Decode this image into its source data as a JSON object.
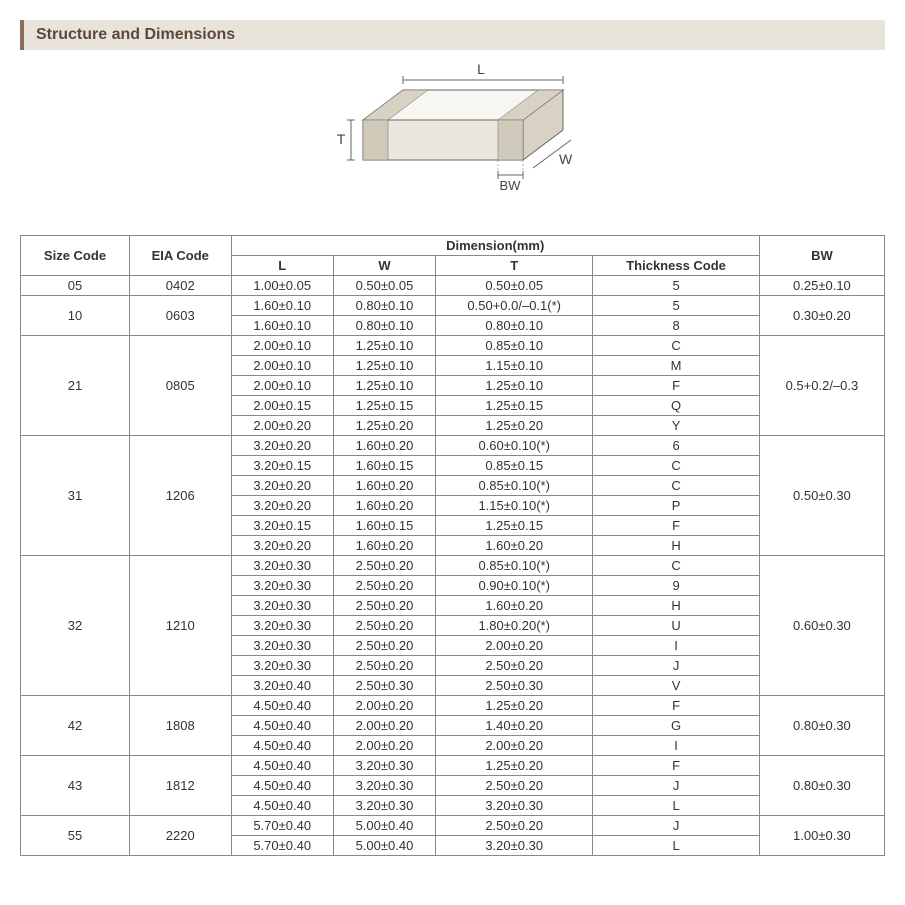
{
  "section_title": "Structure and Dimensions",
  "diagram": {
    "label_L": "L",
    "label_W": "W",
    "label_T": "T",
    "label_BW": "BW",
    "stroke_color": "#666666",
    "fill_light": "#f8f6f0",
    "fill_mid": "#ebe7de",
    "fill_dark": "#d8d2c4"
  },
  "table": {
    "header_sizecode": "Size Code",
    "header_eiacode": "EIA Code",
    "header_dimension": "Dimension(mm)",
    "header_L": "L",
    "header_W": "W",
    "header_T": "T",
    "header_thickness": "Thickness Code",
    "header_BW": "BW",
    "groups": [
      {
        "size": "05",
        "eia": "0402",
        "bw": "0.25±0.10",
        "rows": [
          {
            "L": "1.00±0.05",
            "W": "0.50±0.05",
            "T": "0.50±0.05",
            "TC": "5"
          }
        ]
      },
      {
        "size": "10",
        "eia": "0603",
        "bw": "0.30±0.20",
        "rows": [
          {
            "L": "1.60±0.10",
            "W": "0.80±0.10",
            "T": "0.50+0.0/–0.1(*)",
            "TC": "5"
          },
          {
            "L": "1.60±0.10",
            "W": "0.80±0.10",
            "T": "0.80±0.10",
            "TC": "8"
          }
        ]
      },
      {
        "size": "21",
        "eia": "0805",
        "bw": "0.5+0.2/–0.3",
        "rows": [
          {
            "L": "2.00±0.10",
            "W": "1.25±0.10",
            "T": "0.85±0.10",
            "TC": "C"
          },
          {
            "L": "2.00±0.10",
            "W": "1.25±0.10",
            "T": "1.15±0.10",
            "TC": "M"
          },
          {
            "L": "2.00±0.10",
            "W": "1.25±0.10",
            "T": "1.25±0.10",
            "TC": "F"
          },
          {
            "L": "2.00±0.15",
            "W": "1.25±0.15",
            "T": "1.25±0.15",
            "TC": "Q"
          },
          {
            "L": "2.00±0.20",
            "W": "1.25±0.20",
            "T": "1.25±0.20",
            "TC": "Y"
          }
        ]
      },
      {
        "size": "31",
        "eia": "1206",
        "bw": "0.50±0.30",
        "rows": [
          {
            "L": "3.20±0.20",
            "W": "1.60±0.20",
            "T": "0.60±0.10(*)",
            "TC": "6"
          },
          {
            "L": "3.20±0.15",
            "W": "1.60±0.15",
            "T": "0.85±0.15",
            "TC": "C"
          },
          {
            "L": "3.20±0.20",
            "W": "1.60±0.20",
            "T": "0.85±0.10(*)",
            "TC": "C"
          },
          {
            "L": "3.20±0.20",
            "W": "1.60±0.20",
            "T": "1.15±0.10(*)",
            "TC": "P"
          },
          {
            "L": "3.20±0.15",
            "W": "1.60±0.15",
            "T": "1.25±0.15",
            "TC": "F"
          },
          {
            "L": "3.20±0.20",
            "W": "1.60±0.20",
            "T": "1.60±0.20",
            "TC": "H"
          }
        ]
      },
      {
        "size": "32",
        "eia": "1210",
        "bw": "0.60±0.30",
        "rows": [
          {
            "L": "3.20±0.30",
            "W": "2.50±0.20",
            "T": "0.85±0.10(*)",
            "TC": "C"
          },
          {
            "L": "3.20±0.30",
            "W": "2.50±0.20",
            "T": "0.90±0.10(*)",
            "TC": "9"
          },
          {
            "L": "3.20±0.30",
            "W": "2.50±0.20",
            "T": "1.60±0.20",
            "TC": "H"
          },
          {
            "L": "3.20±0.30",
            "W": "2.50±0.20",
            "T": "1.80±0.20(*)",
            "TC": "U"
          },
          {
            "L": "3.20±0.30",
            "W": "2.50±0.20",
            "T": "2.00±0.20",
            "TC": "I"
          },
          {
            "L": "3.20±0.30",
            "W": "2.50±0.20",
            "T": "2.50±0.20",
            "TC": "J"
          },
          {
            "L": "3.20±0.40",
            "W": "2.50±0.30",
            "T": "2.50±0.30",
            "TC": "V"
          }
        ]
      },
      {
        "size": "42",
        "eia": "1808",
        "bw": "0.80±0.30",
        "rows": [
          {
            "L": "4.50±0.40",
            "W": "2.00±0.20",
            "T": "1.25±0.20",
            "TC": "F"
          },
          {
            "L": "4.50±0.40",
            "W": "2.00±0.20",
            "T": "1.40±0.20",
            "TC": "G"
          },
          {
            "L": "4.50±0.40",
            "W": "2.00±0.20",
            "T": "2.00±0.20",
            "TC": "I"
          }
        ]
      },
      {
        "size": "43",
        "eia": "1812",
        "bw": "0.80±0.30",
        "rows": [
          {
            "L": "4.50±0.40",
            "W": "3.20±0.30",
            "T": "1.25±0.20",
            "TC": "F"
          },
          {
            "L": "4.50±0.40",
            "W": "3.20±0.30",
            "T": "2.50±0.20",
            "TC": "J"
          },
          {
            "L": "4.50±0.40",
            "W": "3.20±0.30",
            "T": "3.20±0.30",
            "TC": "L"
          }
        ]
      },
      {
        "size": "55",
        "eia": "2220",
        "bw": "1.00±0.30",
        "rows": [
          {
            "L": "5.70±0.40",
            "W": "5.00±0.40",
            "T": "2.50±0.20",
            "TC": "J"
          },
          {
            "L": "5.70±0.40",
            "W": "5.00±0.40",
            "T": "3.20±0.30",
            "TC": "L"
          }
        ]
      }
    ]
  }
}
